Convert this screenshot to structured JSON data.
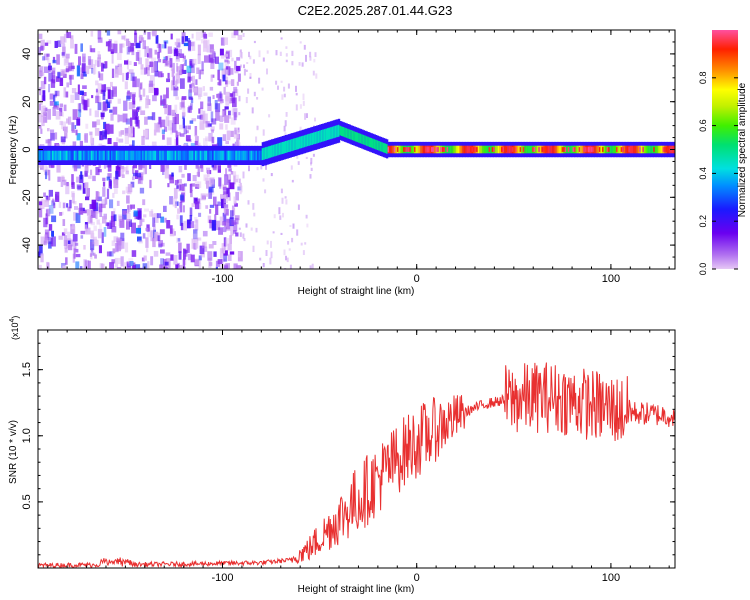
{
  "title": "C2E2.2025.287.01.44.G23",
  "chart_data": [
    {
      "type": "heatmap",
      "xlabel": "Height of straight line (km)",
      "ylabel": "Frequency (Hz)",
      "xlim": [
        -195,
        133
      ],
      "ylim": [
        -50,
        50
      ],
      "xticks": [
        -100,
        0,
        100
      ],
      "yticks": [
        -40,
        -20,
        0,
        20,
        40
      ],
      "colorbar": {
        "label": "Normalized spectral amplitude",
        "range": [
          0,
          1
        ],
        "ticks": [
          "0.0",
          "0.2",
          "0.4",
          "0.6",
          "0.8"
        ]
      }
    },
    {
      "type": "line",
      "xlabel": "Height of straight line (km)",
      "ylabel": "SNR (10 * v/v)",
      "y_multiplier": "(x10",
      "y_multiplier_exp": "4",
      "multiplier_close": ")",
      "xlim": [
        -195,
        133
      ],
      "ylim": [
        0,
        1.8
      ],
      "xticks": [
        -100,
        0,
        100
      ],
      "yticks": [
        "0.5",
        "1.0",
        "1.5"
      ],
      "line_color": "#e83030",
      "envelope": [
        {
          "x": -195,
          "y": 0.02
        },
        {
          "x": -120,
          "y": 0.03
        },
        {
          "x": -80,
          "y": 0.04
        },
        {
          "x": -65,
          "y": 0.06
        },
        {
          "x": -55,
          "y": 0.15
        },
        {
          "x": -45,
          "y": 0.3
        },
        {
          "x": -35,
          "y": 0.45
        },
        {
          "x": -25,
          "y": 0.6
        },
        {
          "x": -15,
          "y": 0.75
        },
        {
          "x": -5,
          "y": 0.9
        },
        {
          "x": 5,
          "y": 1.0
        },
        {
          "x": 15,
          "y": 1.1
        },
        {
          "x": 25,
          "y": 1.18
        },
        {
          "x": 35,
          "y": 1.24
        },
        {
          "x": 45,
          "y": 1.27
        },
        {
          "x": 55,
          "y": 1.28
        },
        {
          "x": 65,
          "y": 1.3
        },
        {
          "x": 75,
          "y": 1.28
        },
        {
          "x": 85,
          "y": 1.25
        },
        {
          "x": 95,
          "y": 1.22
        },
        {
          "x": 105,
          "y": 1.19
        },
        {
          "x": 115,
          "y": 1.17
        },
        {
          "x": 125,
          "y": 1.16
        },
        {
          "x": 133,
          "y": 1.15
        }
      ]
    }
  ]
}
